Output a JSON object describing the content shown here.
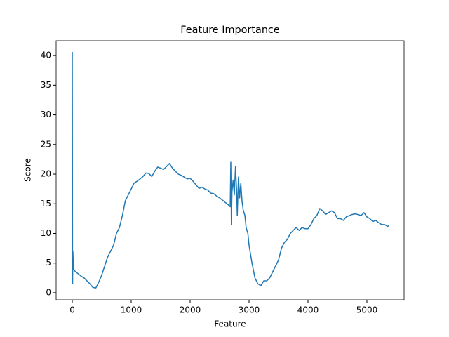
{
  "chart_data": {
    "type": "line",
    "title": "Feature Importance",
    "x_label": "Feature",
    "y_label": "Score",
    "color": "#1f77b4",
    "x": [
      0,
      5,
      10,
      20,
      50,
      100,
      150,
      200,
      250,
      300,
      350,
      400,
      450,
      500,
      550,
      600,
      650,
      700,
      750,
      800,
      850,
      900,
      950,
      1000,
      1050,
      1100,
      1150,
      1200,
      1250,
      1300,
      1350,
      1400,
      1450,
      1500,
      1550,
      1600,
      1650,
      1700,
      1750,
      1800,
      1850,
      1900,
      1950,
      2000,
      2050,
      2100,
      2150,
      2200,
      2250,
      2300,
      2350,
      2400,
      2450,
      2500,
      2550,
      2600,
      2650,
      2680,
      2690,
      2700,
      2710,
      2730,
      2750,
      2770,
      2790,
      2800,
      2820,
      2840,
      2860,
      2880,
      2900,
      2930,
      2950,
      2980,
      3000,
      3050,
      3100,
      3150,
      3200,
      3250,
      3300,
      3350,
      3400,
      3450,
      3500,
      3550,
      3600,
      3650,
      3700,
      3750,
      3800,
      3850,
      3900,
      3950,
      4000,
      4050,
      4100,
      4150,
      4200,
      4250,
      4300,
      4350,
      4400,
      4450,
      4500,
      4550,
      4600,
      4650,
      4700,
      4750,
      4800,
      4850,
      4900,
      4950,
      5000,
      5050,
      5100,
      5150,
      5200,
      5250,
      5300,
      5350,
      5380
    ],
    "values": [
      40.6,
      1.5,
      7,
      4,
      3.6,
      3.2,
      2.8,
      2.5,
      2.0,
      1.5,
      0.9,
      0.8,
      1.8,
      3,
      4.5,
      6,
      7,
      8,
      10,
      11,
      13,
      15.5,
      16.5,
      17.5,
      18.5,
      18.8,
      19.2,
      19.6,
      20.2,
      20.1,
      19.6,
      20.5,
      21.2,
      21,
      20.8,
      21.3,
      21.8,
      21,
      20.5,
      20,
      19.8,
      19.5,
      19.2,
      19.3,
      18.8,
      18.2,
      17.6,
      17.8,
      17.5,
      17.3,
      16.8,
      16.7,
      16.3,
      16,
      15.6,
      15.2,
      14.8,
      14.5,
      22,
      11.5,
      17,
      19,
      16.5,
      21.3,
      17,
      13,
      19.5,
      16,
      18.5,
      15.5,
      14,
      13,
      11,
      10,
      8,
      5,
      2.5,
      1.5,
      1.2,
      2,
      2,
      2.5,
      3.5,
      4.5,
      5.5,
      7.5,
      8.5,
      9,
      10,
      10.5,
      11,
      10.5,
      11,
      10.8,
      10.8,
      11.5,
      12.5,
      13,
      14.2,
      13.8,
      13.2,
      13.5,
      13.8,
      13.5,
      12.5,
      12.5,
      12.2,
      12.8,
      13,
      13.2,
      13.3,
      13.2,
      13,
      13.5,
      12.8,
      12.5,
      12,
      12.2,
      11.8,
      11.5,
      11.5,
      11.2,
      11.3
    ],
    "xlim": [
      -274,
      5631
    ],
    "ylim": [
      -1.19,
      42.5
    ],
    "xticks": [
      0,
      1000,
      2000,
      3000,
      4000,
      5000
    ],
    "yticks": [
      0,
      5,
      10,
      15,
      20,
      25,
      30,
      35,
      40
    ]
  }
}
